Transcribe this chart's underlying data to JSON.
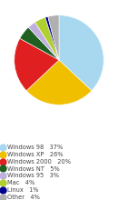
{
  "labels": [
    "Windows 98",
    "Windows XP",
    "Windows 2000",
    "Windows NT",
    "Windows 95",
    "Mac",
    "Linux",
    "Other"
  ],
  "values": [
    37,
    26,
    20,
    5,
    3,
    4,
    1,
    4
  ],
  "colors": [
    "#a8d8f0",
    "#f0c000",
    "#e02020",
    "#206020",
    "#c0b0e0",
    "#b0d030",
    "#000090",
    "#b0b0b0"
  ],
  "pct_labels": [
    "37%",
    "26%",
    "20%",
    "5%",
    "3%",
    "4%",
    "1%",
    "4%"
  ],
  "background_color": "#ffffff",
  "startangle": 90,
  "figsize": [
    1.3,
    2.2
  ],
  "dpi": 100
}
